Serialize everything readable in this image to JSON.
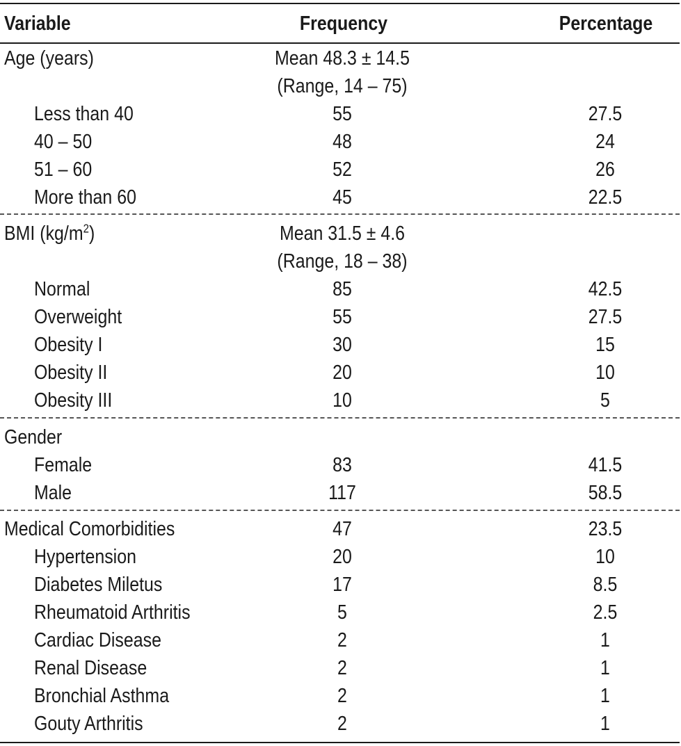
{
  "table": {
    "headers": {
      "variable": "Variable",
      "frequency": "Frequency",
      "percentage": "Percentage"
    },
    "age": {
      "label": "Age (years)",
      "mean": "Mean 48.3 ± 14.5",
      "range": "(Range, 14 – 75)",
      "rows": [
        {
          "label": "Less than 40",
          "frequency": "55",
          "percentage": "27.5"
        },
        {
          "label": "40 – 50",
          "frequency": "48",
          "percentage": "24"
        },
        {
          "label": "51 – 60",
          "frequency": "52",
          "percentage": "26"
        },
        {
          "label": "More than 60",
          "frequency": "45",
          "percentage": "22.5"
        }
      ]
    },
    "bmi": {
      "label_prefix": "BMI (kg/m",
      "label_sup": "2",
      "label_suffix": ")",
      "mean": "Mean 31.5 ± 4.6",
      "range": "(Range, 18 – 38)",
      "rows": [
        {
          "label": "Normal",
          "frequency": "85",
          "percentage": "42.5"
        },
        {
          "label": "Overweight",
          "frequency": "55",
          "percentage": "27.5"
        },
        {
          "label": "Obesity I",
          "frequency": "30",
          "percentage": "15"
        },
        {
          "label": "Obesity II",
          "frequency": "20",
          "percentage": "10"
        },
        {
          "label": "Obesity III",
          "frequency": "10",
          "percentage": "5"
        }
      ]
    },
    "gender": {
      "label": "Gender",
      "rows": [
        {
          "label": "Female",
          "frequency": "83",
          "percentage": "41.5"
        },
        {
          "label": "Male",
          "frequency": "117",
          "percentage": "58.5"
        }
      ]
    },
    "comorbidities": {
      "label": "Medical Comorbidities",
      "frequency": "47",
      "percentage": "23.5",
      "rows": [
        {
          "label": "Hypertension",
          "frequency": "20",
          "percentage": "10"
        },
        {
          "label": "Diabetes Miletus",
          "frequency": "17",
          "percentage": "8.5"
        },
        {
          "label": "Rheumatoid Arthritis",
          "frequency": "5",
          "percentage": "2.5"
        },
        {
          "label": "Cardiac Disease",
          "frequency": "2",
          "percentage": "1"
        },
        {
          "label": "Renal Disease",
          "frequency": "2",
          "percentage": "1"
        },
        {
          "label": "Bronchial Asthma",
          "frequency": "2",
          "percentage": "1"
        },
        {
          "label": "Gouty Arthritis",
          "frequency": "2",
          "percentage": "1"
        }
      ]
    }
  }
}
